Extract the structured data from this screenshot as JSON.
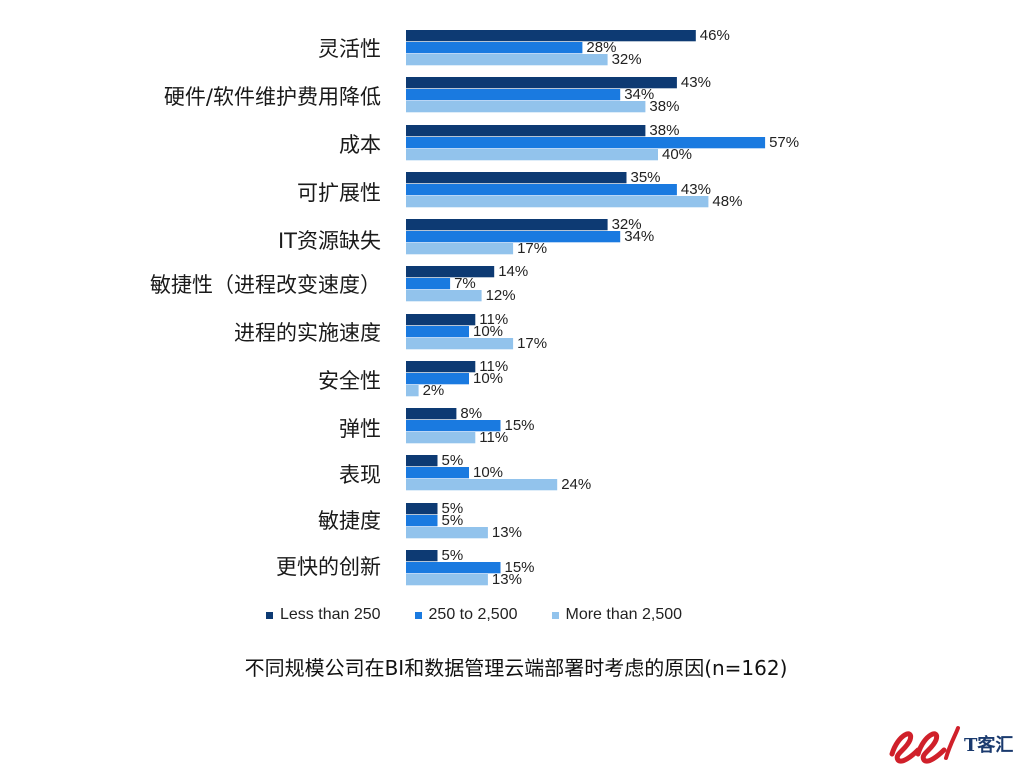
{
  "chart_data": {
    "type": "bar",
    "orientation": "horizontal",
    "categories": [
      "灵活性",
      "硬件/软件维护费用降低",
      "成本",
      "可扩展性",
      "IT资源缺失",
      "敏捷性（进程改变速度）",
      "进程的实施速度",
      "安全性",
      "弹性",
      "表现",
      "敏捷度",
      "更快的创新"
    ],
    "series": [
      {
        "name": "Less than 250",
        "color": "#0d3a73",
        "values": [
          46,
          43,
          38,
          35,
          32,
          14,
          11,
          11,
          8,
          5,
          5,
          5
        ]
      },
      {
        "name": "250 to 2,500",
        "color": "#1a7ae0",
        "values": [
          28,
          34,
          57,
          43,
          34,
          7,
          10,
          10,
          15,
          10,
          5,
          15
        ]
      },
      {
        "name": "More than 2,500",
        "color": "#92c3ec",
        "values": [
          32,
          38,
          40,
          48,
          17,
          12,
          17,
          2,
          11,
          24,
          13,
          13
        ]
      }
    ],
    "value_suffix": "%",
    "legend_position": "bottom",
    "grid": false
  },
  "caption": "不同规模公司在BI和数据管理云端部署时考虑的原因(n=162)",
  "logo": {
    "text": "T客汇",
    "icon": "ee-script-logo",
    "color": "#d0202a"
  }
}
